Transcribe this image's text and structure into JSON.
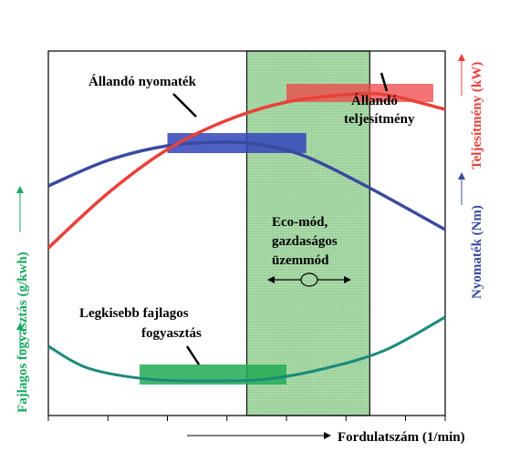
{
  "chart_data": {
    "type": "line",
    "xlabel": "Fordulatszám (1/min)",
    "axis_labels": {
      "power": "Teljesítmény (kW)",
      "torque": "Nyomaték (Nm)",
      "consumption": "Fajlagos fogyasztás (g/kwh)"
    },
    "xlim": [
      0,
      100
    ],
    "ylim": [
      0,
      100
    ],
    "x_ticks": [
      0,
      15,
      30,
      45,
      60,
      75,
      90,
      100
    ],
    "grid": false,
    "series": [
      {
        "key": "power",
        "color": "#e8413a",
        "x": [
          0,
          15,
          30,
          45,
          60,
          75,
          85,
          100
        ],
        "y": [
          46,
          61,
          73,
          81,
          86,
          88,
          88,
          84
        ]
      },
      {
        "key": "torque",
        "color": "#3a4a9e",
        "x": [
          0,
          15,
          30,
          45,
          55,
          65,
          80,
          100
        ],
        "y": [
          63,
          70,
          74,
          75,
          74,
          71,
          63,
          51
        ]
      },
      {
        "key": "consumption",
        "color": "#1a8a7a",
        "x": [
          0,
          10,
          25,
          40,
          55,
          70,
          85,
          100
        ],
        "y": [
          19,
          13,
          10,
          9.5,
          10,
          13,
          18,
          27
        ]
      }
    ],
    "bands": [
      {
        "key": "constant_torque",
        "color": "#3344bb",
        "x": [
          30,
          65
        ],
        "y": [
          72,
          77.5
        ]
      },
      {
        "key": "constant_power",
        "color": "#ee4444",
        "x": [
          60,
          97
        ],
        "y": [
          86,
          91
        ]
      },
      {
        "key": "min_consumption",
        "color": "#22aa55",
        "x": [
          23,
          60
        ],
        "y": [
          8.5,
          14
        ]
      }
    ],
    "eco_region": {
      "x": [
        50,
        81
      ],
      "color": "#9ed39e"
    },
    "annotations": {
      "constant_torque": "Állandó nyomaték",
      "constant_power_line1": "Állandó",
      "constant_power_line2": "teljesítmény",
      "eco_line1": "Eco-mód,",
      "eco_line2": "gazdaságos",
      "eco_line3": "üzemmód",
      "min_consumption_line1": "Legkisebb fajlagos",
      "min_consumption_line2": "fogyasztás"
    }
  }
}
